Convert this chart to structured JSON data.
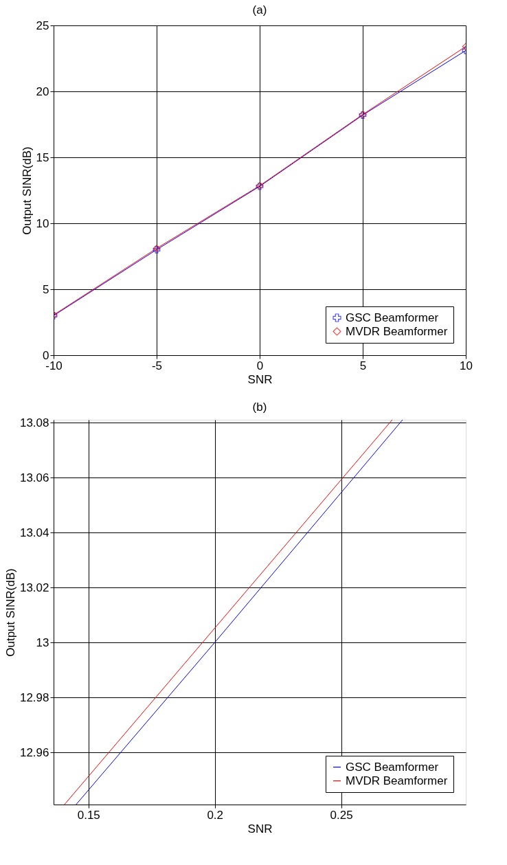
{
  "chart_data": [
    {
      "type": "line",
      "title": "(a)",
      "xlabel": "SNR",
      "ylabel": "Output SINR(dB)",
      "x": [
        -10,
        -5,
        0,
        5,
        10
      ],
      "series": [
        {
          "name": "GSC Beamformer",
          "color": "#0000ff",
          "marker": "cross",
          "values": [
            3.0,
            8.0,
            12.8,
            18.2,
            23.1
          ]
        },
        {
          "name": "MVDR Beamformer",
          "color": "#ff0000",
          "marker": "diamond",
          "values": [
            3.05,
            8.1,
            12.85,
            18.25,
            23.4
          ]
        }
      ],
      "xlim": [
        -10,
        10
      ],
      "xticks": [
        -10,
        -5,
        0,
        5,
        10
      ],
      "ylim": [
        0,
        25
      ],
      "yticks": [
        0,
        5,
        10,
        15,
        20,
        25
      ],
      "grid": true,
      "legend": "bottom right",
      "line_style": "solid"
    },
    {
      "type": "line",
      "title": "(b)",
      "xlabel": "SNR",
      "ylabel": "Output SINR(dB)",
      "series": [
        {
          "name": "GSC Beamformer",
          "color": "#0000ff",
          "x": [
            0.1451,
            0.2,
            0.2743
          ],
          "values": [
            12.941,
            13.0,
            13.081
          ]
        },
        {
          "name": "MVDR Beamformer",
          "color": "#ff0000",
          "x": [
            0.1405,
            0.2702
          ],
          "values": [
            12.941,
            13.081
          ]
        }
      ],
      "xlim": [
        0.1362,
        0.2993
      ],
      "xticks": [
        0.15,
        {
          "value": 0.2,
          "label": "0.2"
        },
        0.25
      ],
      "ylim": [
        12.941,
        13.081
      ],
      "yticks": [
        12.96,
        12.98,
        {
          "value": 13,
          "label": "13"
        },
        13.02,
        13.04,
        13.06,
        13.08
      ],
      "grid": true,
      "legend": "bottom right",
      "marker": "none",
      "line_style": "solid"
    }
  ]
}
